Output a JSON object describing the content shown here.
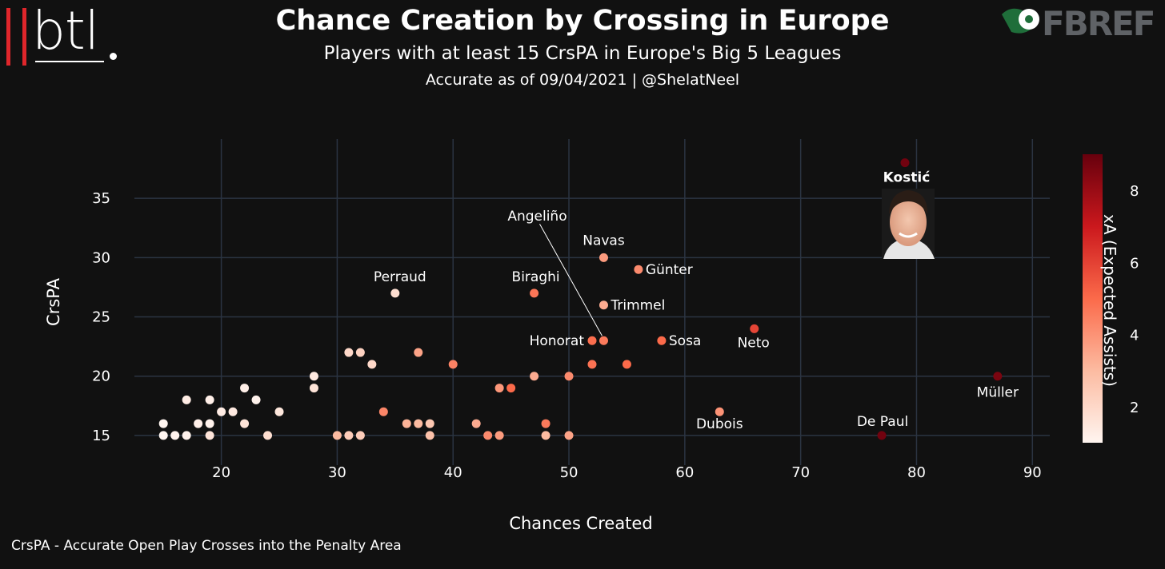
{
  "header": {
    "title": "Chance Creation by Crossing in Europe",
    "subtitle": "Players with at least 15 CrsPA in Europe's Big 5 Leagues",
    "byline": "Accurate as of 09/04/2021 | @ShelatNeel"
  },
  "brand_left": "btl",
  "brand_right": "FBREF",
  "footnote": "CrsPA - Accurate Open Play Crosses into the Penalty Area",
  "chart_data": {
    "type": "scatter",
    "title": "Chance Creation by Crossing in Europe",
    "xlabel": "Chances Created",
    "ylabel": "CrsPA",
    "xlim": [
      12.5,
      91.5
    ],
    "ylim": [
      12.5,
      40
    ],
    "xticks": [
      20,
      30,
      40,
      50,
      60,
      70,
      80,
      90
    ],
    "yticks": [
      15,
      20,
      25,
      30,
      35
    ],
    "grid": true,
    "colorbar": {
      "label": "xA (Expected Assists)",
      "range": [
        1,
        9
      ],
      "ticks": [
        2,
        4,
        6,
        8
      ],
      "colors": [
        "#fff5f0",
        "#fcbba1",
        "#fb6a4a",
        "#cb181d",
        "#67000d"
      ]
    },
    "points": [
      {
        "x": 79,
        "y": 38,
        "xa": 8.8,
        "label": "Kostić",
        "bold": true
      },
      {
        "x": 53,
        "y": 30,
        "xa": 3.8,
        "label": "Navas"
      },
      {
        "x": 56,
        "y": 29,
        "xa": 4.2,
        "label": "Günter"
      },
      {
        "x": 35,
        "y": 27,
        "xa": 1.8,
        "label": "Perraud"
      },
      {
        "x": 47,
        "y": 27,
        "xa": 4.7,
        "label": "Biraghi"
      },
      {
        "x": 53,
        "y": 26,
        "xa": 3.4,
        "label": "Trimmel"
      },
      {
        "x": 66,
        "y": 24,
        "xa": 5.9,
        "label": "Neto"
      },
      {
        "x": 52,
        "y": 23,
        "xa": 4.9,
        "label": "Honorat"
      },
      {
        "x": 53,
        "y": 23,
        "xa": 4.6,
        "label": "Angeliño"
      },
      {
        "x": 58,
        "y": 23,
        "xa": 5.0,
        "label": "Sosa"
      },
      {
        "x": 87,
        "y": 20,
        "xa": 8.6,
        "label": "Müller"
      },
      {
        "x": 63,
        "y": 17,
        "xa": 4.0,
        "label": "Dubois"
      },
      {
        "x": 77,
        "y": 15,
        "xa": 8.8,
        "label": "De Paul"
      },
      {
        "x": 31,
        "y": 22,
        "xa": 2.0,
        "label": ""
      },
      {
        "x": 32,
        "y": 22,
        "xa": 2.2,
        "label": ""
      },
      {
        "x": 33,
        "y": 21,
        "xa": 2.0,
        "label": ""
      },
      {
        "x": 37,
        "y": 22,
        "xa": 3.6,
        "label": ""
      },
      {
        "x": 40,
        "y": 21,
        "xa": 4.4,
        "label": ""
      },
      {
        "x": 47,
        "y": 20,
        "xa": 3.4,
        "label": ""
      },
      {
        "x": 50,
        "y": 20,
        "xa": 4.2,
        "label": ""
      },
      {
        "x": 52,
        "y": 21,
        "xa": 4.8,
        "label": ""
      },
      {
        "x": 55,
        "y": 21,
        "xa": 5.0,
        "label": ""
      },
      {
        "x": 44,
        "y": 19,
        "xa": 3.9,
        "label": ""
      },
      {
        "x": 45,
        "y": 19,
        "xa": 5.0,
        "label": ""
      },
      {
        "x": 28,
        "y": 20,
        "xa": 1.4,
        "label": ""
      },
      {
        "x": 28,
        "y": 19,
        "xa": 1.6,
        "label": ""
      },
      {
        "x": 22,
        "y": 19,
        "xa": 1.2,
        "label": ""
      },
      {
        "x": 17,
        "y": 18,
        "xa": 1.3,
        "label": ""
      },
      {
        "x": 19,
        "y": 18,
        "xa": 1.2,
        "label": ""
      },
      {
        "x": 23,
        "y": 18,
        "xa": 1.1,
        "label": ""
      },
      {
        "x": 20,
        "y": 17,
        "xa": 1.3,
        "label": ""
      },
      {
        "x": 21,
        "y": 17,
        "xa": 1.4,
        "label": ""
      },
      {
        "x": 25,
        "y": 17,
        "xa": 1.5,
        "label": ""
      },
      {
        "x": 34,
        "y": 17,
        "xa": 4.3,
        "label": ""
      },
      {
        "x": 15,
        "y": 16,
        "xa": 1.0,
        "label": ""
      },
      {
        "x": 18,
        "y": 16,
        "xa": 1.2,
        "label": ""
      },
      {
        "x": 19,
        "y": 16,
        "xa": 1.1,
        "label": ""
      },
      {
        "x": 22,
        "y": 16,
        "xa": 1.6,
        "label": ""
      },
      {
        "x": 36,
        "y": 16,
        "xa": 3.2,
        "label": ""
      },
      {
        "x": 37,
        "y": 16,
        "xa": 3.0,
        "label": ""
      },
      {
        "x": 38,
        "y": 16,
        "xa": 2.6,
        "label": ""
      },
      {
        "x": 42,
        "y": 16,
        "xa": 3.4,
        "label": ""
      },
      {
        "x": 48,
        "y": 16,
        "xa": 4.6,
        "label": ""
      },
      {
        "x": 15,
        "y": 15,
        "xa": 1.0,
        "label": ""
      },
      {
        "x": 16,
        "y": 15,
        "xa": 1.1,
        "label": ""
      },
      {
        "x": 17,
        "y": 15,
        "xa": 1.1,
        "label": ""
      },
      {
        "x": 19,
        "y": 15,
        "xa": 1.6,
        "label": ""
      },
      {
        "x": 24,
        "y": 15,
        "xa": 1.8,
        "label": ""
      },
      {
        "x": 30,
        "y": 15,
        "xa": 3.0,
        "label": ""
      },
      {
        "x": 31,
        "y": 15,
        "xa": 2.4,
        "label": ""
      },
      {
        "x": 32,
        "y": 15,
        "xa": 2.4,
        "label": ""
      },
      {
        "x": 38,
        "y": 15,
        "xa": 2.8,
        "label": ""
      },
      {
        "x": 43,
        "y": 15,
        "xa": 4.2,
        "label": ""
      },
      {
        "x": 44,
        "y": 15,
        "xa": 3.8,
        "label": ""
      },
      {
        "x": 48,
        "y": 15,
        "xa": 3.0,
        "label": ""
      },
      {
        "x": 50,
        "y": 15,
        "xa": 3.6,
        "label": ""
      }
    ]
  }
}
